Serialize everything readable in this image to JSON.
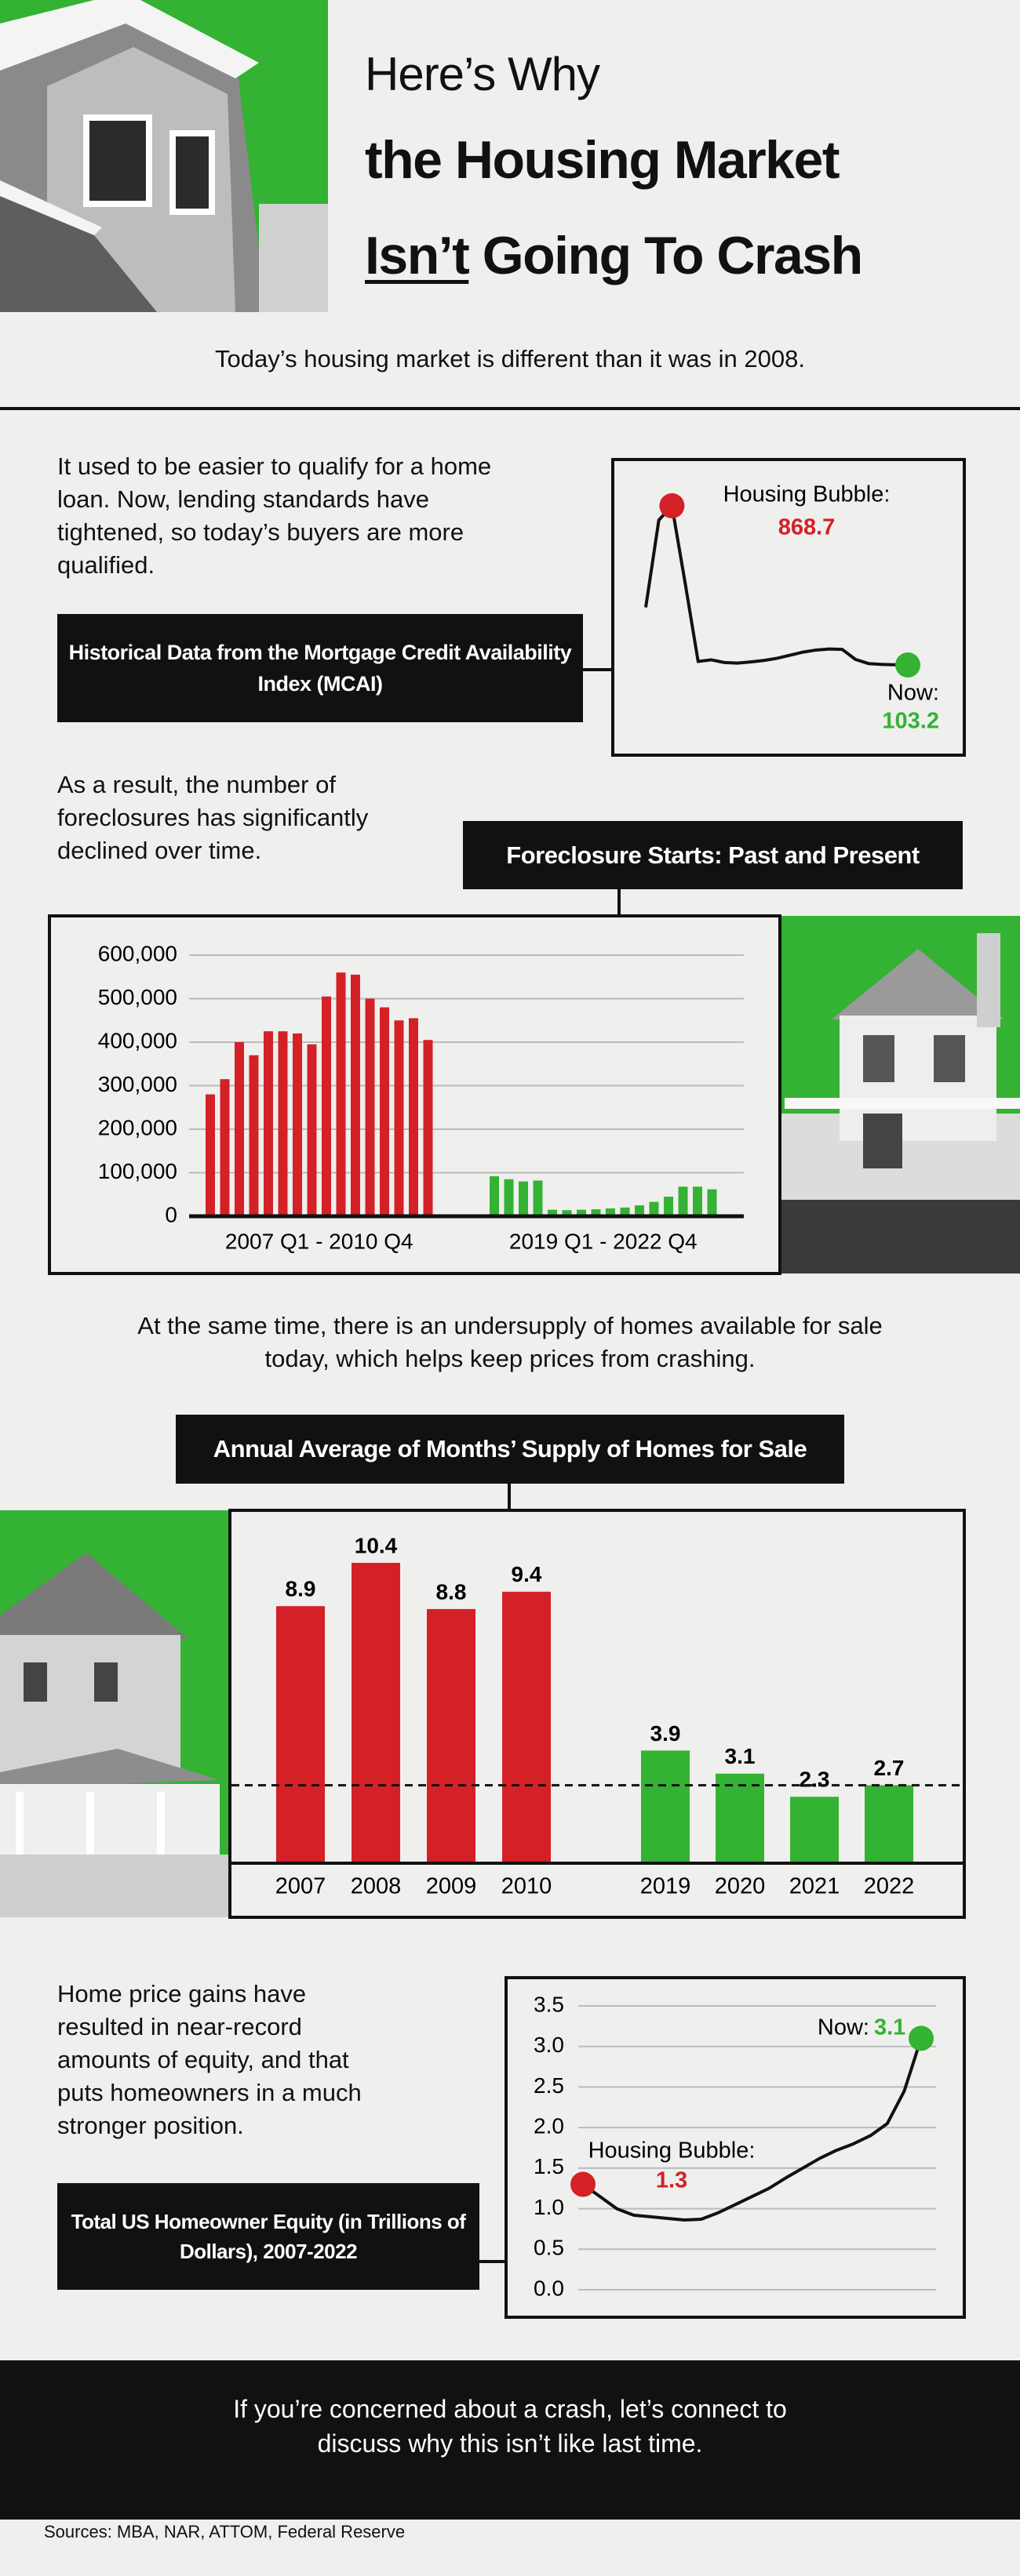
{
  "header": {
    "kicker": "Here’s Why",
    "title_line": "the Housing Market",
    "title_underlined": "Isn’t",
    "title_rest": "Going To Crash",
    "subtitle": "Today’s housing market is different than it was in 2008."
  },
  "sections": [
    {
      "text": "It used to be easier to qualify for a home loan. Now, lending standards have tightened, so today’s buyers are more qualified."
    },
    {
      "text": "As a result, the number of foreclosures has significantly declined over time."
    },
    {
      "text": "At the same time, there is an undersupply of homes available for sale today, which helps keep prices from crashing."
    },
    {
      "text": "Home price gains have resulted in near-record amounts of equity, and that puts homeowners in a much stronger position."
    }
  ],
  "chart_data": [
    {
      "type": "line",
      "title": "Historical Data from the Mortgage Credit Availability Index (MCAI)",
      "values": [
        380,
        800,
        868.7,
        500,
        120,
        128,
        115,
        112,
        118,
        125,
        135,
        150,
        165,
        175,
        180,
        178,
        130,
        110,
        106,
        104,
        103.2
      ],
      "color": "#111111",
      "peak_label": "Housing Bubble:",
      "highlight_color": "#d42027",
      "end_label": "Now:",
      "end_color": "#34b233"
    },
    {
      "type": "bar",
      "title": "Foreclosure Starts: Past and Present",
      "ylim": [
        0,
        600000
      ],
      "yticks": [
        0,
        {
          "value": 100000,
          "label": "100,000"
        },
        {
          "value": 200000,
          "label": "200,000"
        },
        {
          "value": 300000,
          "label": "300,000"
        },
        {
          "value": 400000,
          "label": "400,000"
        },
        {
          "value": 500000,
          "label": "500,000"
        },
        {
          "value": 600000,
          "label": "600,000"
        }
      ],
      "grid": true,
      "series": [
        {
          "name": "2007 Q1 - 2010 Q4",
          "color": "#d42027",
          "values": [
            280000,
            315000,
            400000,
            370000,
            425000,
            425000,
            420000,
            395000,
            505000,
            560000,
            555000,
            500000,
            480000,
            450000,
            455000,
            405000
          ]
        },
        {
          "name": "2019 Q1 - 2022 Q4",
          "color": "#34b233",
          "values": [
            92000,
            85000,
            80000,
            82000,
            15000,
            14000,
            15000,
            16000,
            18000,
            20000,
            25000,
            33000,
            45000,
            68000,
            68000,
            62000
          ]
        }
      ]
    },
    {
      "type": "bar",
      "title": "Annual Average of Months’ Supply of Homes for Sale",
      "categories": [
        "2007",
        "2008",
        "2009",
        "2010",
        "2019",
        "2020",
        "2021",
        "2022"
      ],
      "values": [
        8.9,
        10.4,
        8.8,
        9.4,
        3.9,
        3.1,
        2.3,
        2.7
      ],
      "colors": [
        "#d42027",
        "#d42027",
        "#d42027",
        "#d42027",
        "#34b233",
        "#34b233",
        "#34b233",
        "#34b233"
      ],
      "reference_value": 2.7
    },
    {
      "type": "line",
      "title": "Total US Homeowner Equity (in Trillions of Dollars), 2007-2022",
      "ylim": [
        0,
        3.5
      ],
      "yticks": [
        {
          "value": 0,
          "label": "0.0"
        },
        0.5,
        {
          "value": 1,
          "label": "1.0"
        },
        1.5,
        {
          "value": 2,
          "label": "2.0"
        },
        2.5,
        {
          "value": 3,
          "label": "3.0"
        },
        3.5
      ],
      "grid": true,
      "values": [
        1.3,
        1.15,
        1.0,
        0.92,
        0.9,
        0.88,
        0.86,
        0.87,
        0.95,
        1.05,
        1.15,
        1.25,
        1.38,
        1.5,
        1.62,
        1.72,
        1.8,
        1.9,
        2.05,
        2.45,
        3.1
      ],
      "color": "#111111",
      "start_label": "Housing Bubble:",
      "highlight_color": "#d42027",
      "end_label": "Now:",
      "end_color": "#34b233"
    }
  ],
  "footer": {
    "text": "If you’re concerned about a crash, let’s connect to discuss why this isn’t like last time.",
    "sources": "Sources: MBA, NAR, ATTOM, Federal Reserve"
  }
}
